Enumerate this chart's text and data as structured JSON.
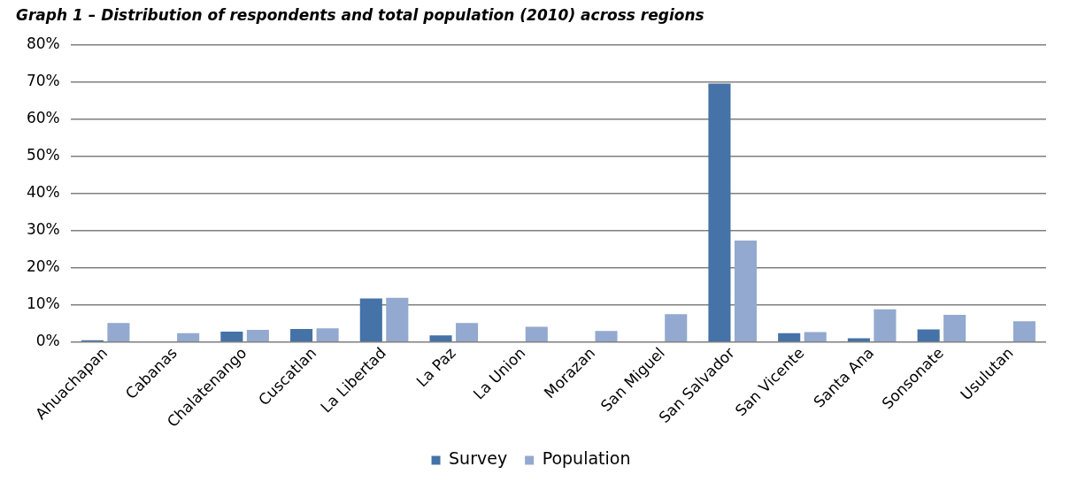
{
  "chart_data": {
    "type": "bar",
    "title": "Graph 1 – Distribution of respondents and total population (2010) across regions",
    "categories": [
      "Ahuachapan",
      "Cabanas",
      "Chalatenango",
      "Cuscatlan",
      "La Libertad",
      "La Paz",
      "La Union",
      "Morazan",
      "San Miguel",
      "San Salvador",
      "San Vicente",
      "Santa Ana",
      "Sonsonate",
      "Usulutan"
    ],
    "series": [
      {
        "name": "Survey",
        "color": "#4572a7",
        "values": [
          0.5,
          0,
          2.8,
          3.5,
          11.7,
          1.8,
          0,
          0,
          0.2,
          69.5,
          2.4,
          1.0,
          3.4,
          0
        ]
      },
      {
        "name": "Population",
        "color": "#93a9cf",
        "values": [
          5.1,
          2.4,
          3.3,
          3.7,
          11.9,
          5.1,
          4.1,
          3.0,
          7.5,
          27.3,
          2.7,
          8.8,
          7.3,
          5.6
        ]
      }
    ],
    "ylim": [
      0,
      80
    ],
    "yticks": [
      {
        "value": 0,
        "label": "0%"
      },
      {
        "value": 10,
        "label": "10%"
      },
      {
        "value": 20,
        "label": "20%"
      },
      {
        "value": 30,
        "label": "30%"
      },
      {
        "value": 40,
        "label": "40%"
      },
      {
        "value": 50,
        "label": "50%"
      },
      {
        "value": 60,
        "label": "60%"
      },
      {
        "value": 70,
        "label": "70%"
      },
      {
        "value": 80,
        "label": "80%"
      }
    ],
    "grid": "y",
    "legend": "bottom"
  }
}
